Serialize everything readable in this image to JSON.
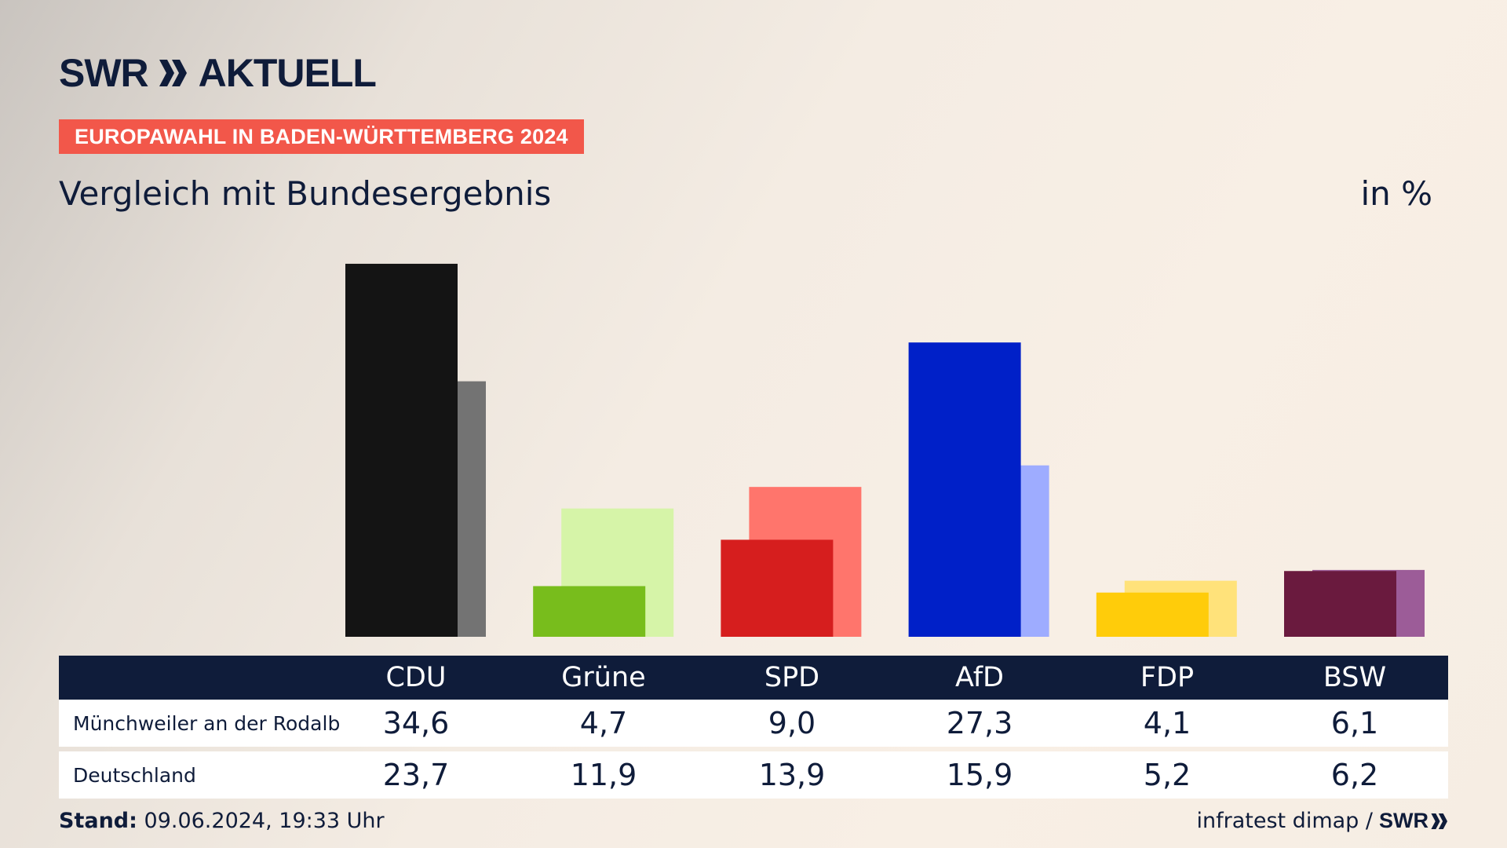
{
  "header": {
    "logo_swr": "SWR",
    "logo_aktuell": "AKTUELL",
    "badge": "EUROPAWAHL IN BADEN-WÜRTTEMBERG 2024",
    "subtitle": "Vergleich mit Bundesergebnis",
    "unit": "in %"
  },
  "chart_data": {
    "type": "bar",
    "categories": [
      "CDU",
      "Grüne",
      "SPD",
      "AfD",
      "FDP",
      "BSW"
    ],
    "series": [
      {
        "name": "Münchweiler an der Rodalb",
        "values": [
          34.6,
          4.7,
          9.0,
          27.3,
          4.1,
          6.1
        ],
        "colors": [
          "#141414",
          "#78bd1c",
          "#d61e1e",
          "#0020c8",
          "#ffcc0a",
          "#6a1a3e"
        ]
      },
      {
        "name": "Deutschland",
        "values": [
          23.7,
          11.9,
          13.9,
          15.9,
          5.2,
          6.2
        ],
        "colors": [
          "#737373",
          "#d6f4a8",
          "#ff756c",
          "#9eacff",
          "#ffe27a",
          "#9c5c98"
        ]
      }
    ],
    "ylim": [
      0,
      35
    ],
    "grid": false
  },
  "table": {
    "parties": [
      "CDU",
      "Grüne",
      "SPD",
      "AfD",
      "FDP",
      "BSW"
    ],
    "rows": [
      {
        "label": "Münchweiler an der Rodalb",
        "values": [
          "34,6",
          "4,7",
          "9,0",
          "27,3",
          "4,1",
          "6,1"
        ]
      },
      {
        "label": "Deutschland",
        "values": [
          "23,7",
          "11,9",
          "13,9",
          "15,9",
          "5,2",
          "6,2"
        ]
      }
    ]
  },
  "footer": {
    "stand_label": "Stand:",
    "stand_value": "09.06.2024, 19:33 Uhr",
    "source": "infratest dimap /",
    "source_logo": "SWR"
  },
  "colors": {
    "navy": "#0f1c3a",
    "badge": "#f2574a"
  }
}
